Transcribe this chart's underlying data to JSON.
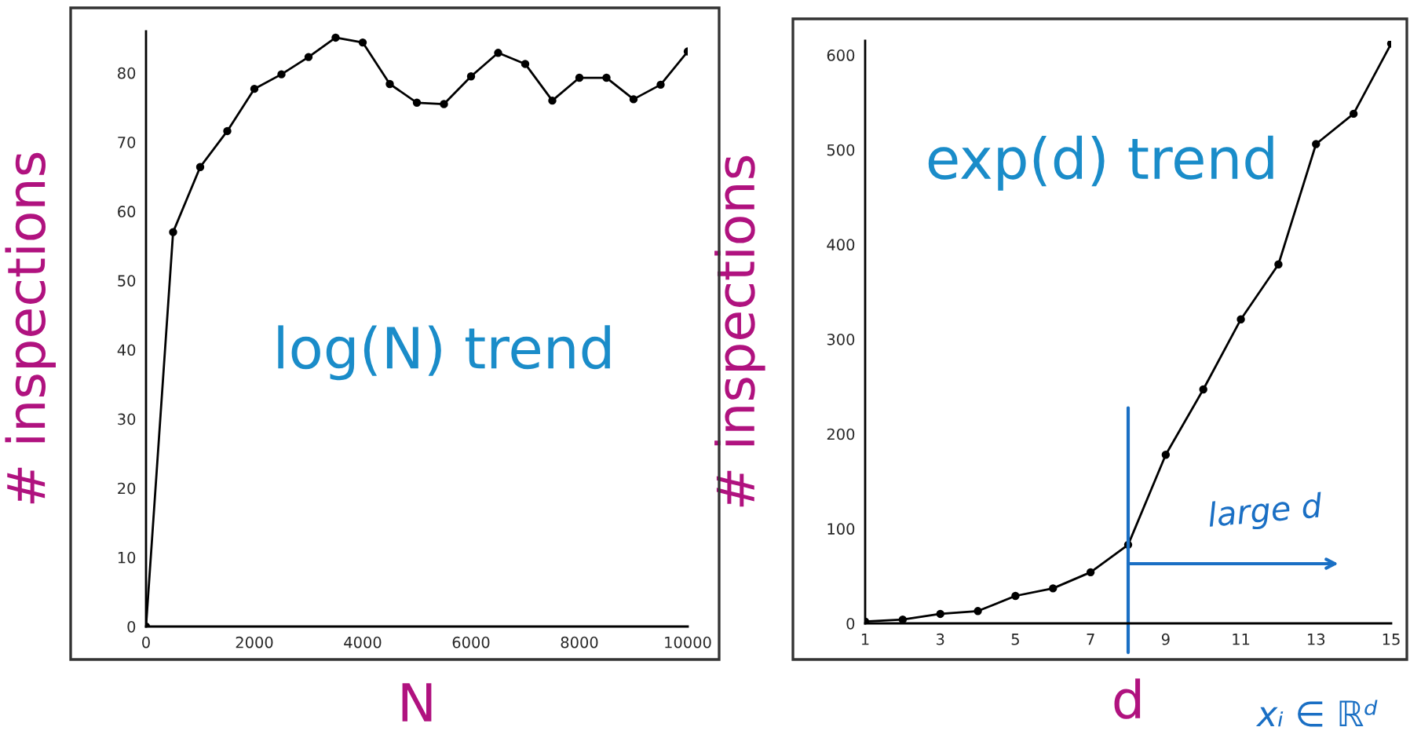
{
  "chart_data": [
    {
      "type": "line",
      "xlabel": "N",
      "ylabel": "# inspections",
      "annotations": [
        "log(N) trend"
      ],
      "series": [
        {
          "color": "#000000",
          "x": [
            0,
            500,
            1000,
            1500,
            2000,
            2500,
            3000,
            3500,
            4000,
            4500,
            5000,
            5500,
            6000,
            6500,
            7000,
            7500,
            8000,
            8500,
            9000,
            9500,
            10000
          ],
          "values": [
            0,
            57,
            66.4,
            71.6,
            77.7,
            79.8,
            82.3,
            85.1,
            84.4,
            78.4,
            75.7,
            75.5,
            79.5,
            82.9,
            81.3,
            76,
            79.3,
            79.3,
            76.2,
            78.3,
            83.1
          ]
        }
      ],
      "xlim": [
        0,
        10000
      ],
      "ylim": [
        0,
        86
      ],
      "xticks": [
        0,
        2000,
        4000,
        6000,
        8000,
        10000
      ],
      "yticks": [
        0,
        10,
        20,
        30,
        40,
        50,
        60,
        70,
        80
      ],
      "marker": "circle",
      "line_style": "solid",
      "grid": false,
      "legend": false
    },
    {
      "type": "line",
      "xlabel": "d",
      "ylabel": "# inspections",
      "annotations": [
        "exp(d) trend",
        {
          "text": "large d",
          "x": 8,
          "y": 63
        },
        "xᵢ ∈ ℝᵈ"
      ],
      "series": [
        {
          "color": "#000000",
          "x": [
            1,
            2,
            3,
            4,
            5,
            6,
            7,
            8,
            9,
            10,
            11,
            12,
            13,
            14,
            15
          ],
          "values": [
            2,
            4,
            10,
            13,
            29,
            37,
            54,
            83,
            178,
            247,
            321,
            379,
            506,
            538,
            612
          ]
        }
      ],
      "xlim": [
        1,
        15
      ],
      "ylim": [
        0,
        615
      ],
      "xticks": [
        1,
        3,
        5,
        7,
        9,
        11,
        13,
        15
      ],
      "yticks": [
        0,
        100,
        200,
        300,
        400,
        500,
        600
      ],
      "ref_lines": [
        {
          "axis": "x",
          "value": 8,
          "color": "#1a6fc4"
        }
      ],
      "marker": "circle",
      "line_style": "solid",
      "grid": false,
      "legend": false
    }
  ]
}
